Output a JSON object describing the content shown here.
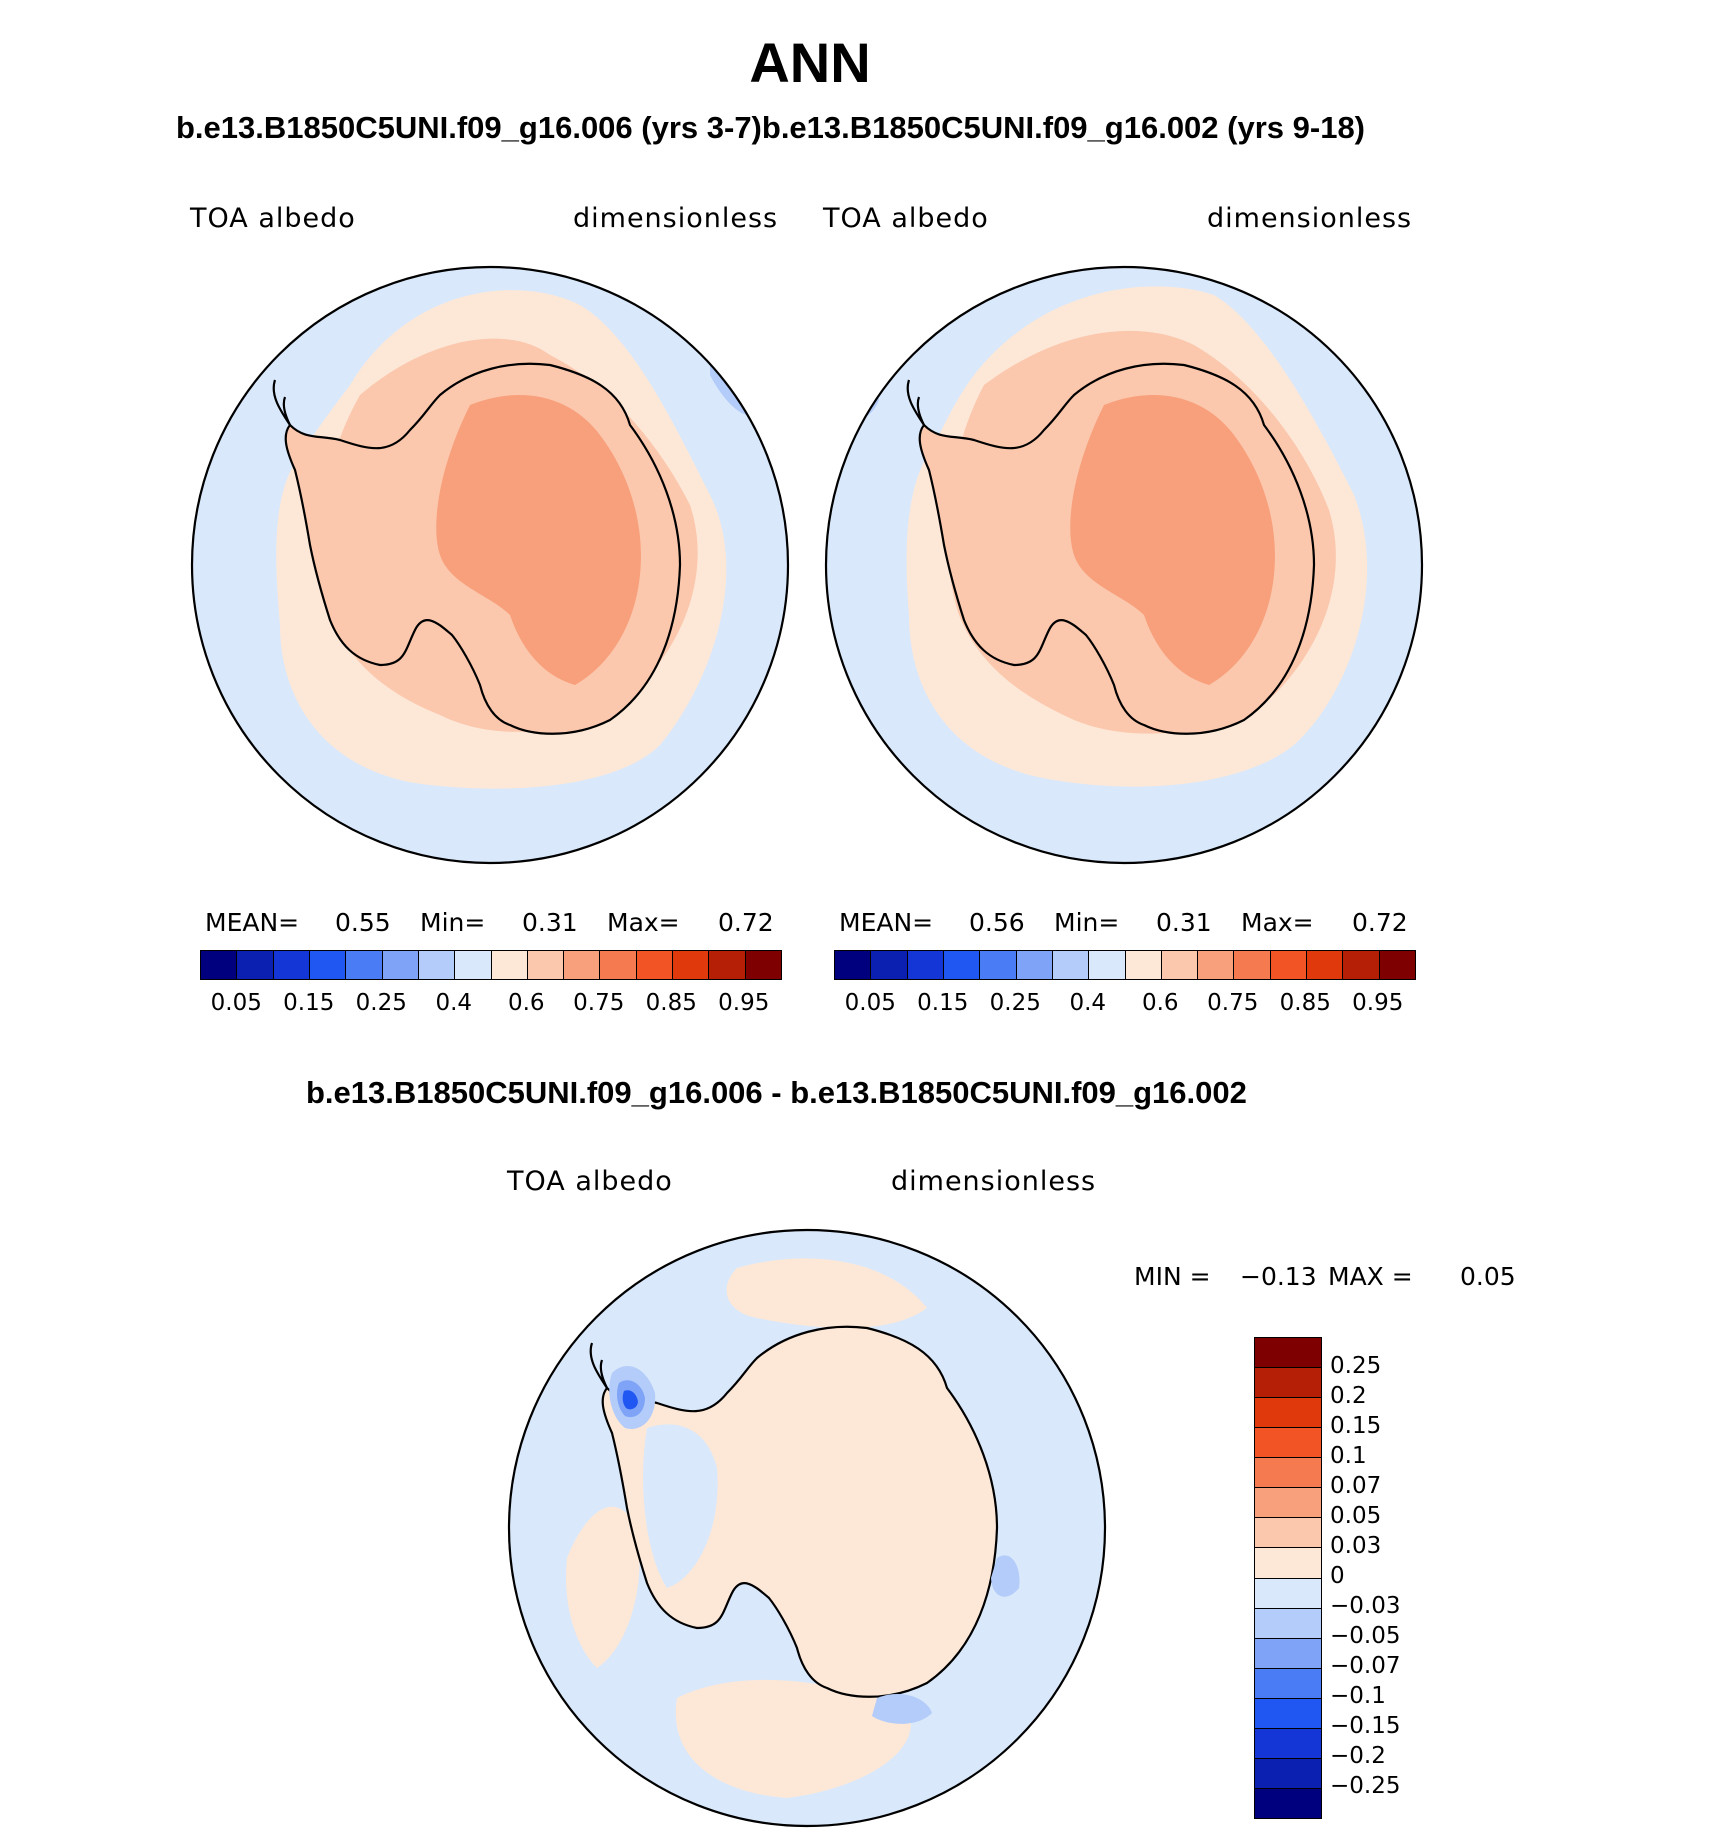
{
  "figure": {
    "title": "ANN",
    "pair_subtitle": "b.e13.B1850C5UNI.f09_g16.006 (yrs 3-7)b.e13.B1850C5UNI.f09_g16.002 (yrs 9-18)",
    "diff_subtitle": "b.e13.B1850C5UNI.f09_g16.006 - b.e13.B1850C5UNI.f09_g16.002"
  },
  "panels": [
    {
      "id": "left",
      "variable": "TOA albedo",
      "units": "dimensionless",
      "stats": {
        "mean_label": "MEAN=",
        "mean": "0.55",
        "min_label": "Min=",
        "min": "0.31",
        "max_label": "Max=",
        "max": "0.72"
      }
    },
    {
      "id": "right",
      "variable": "TOA albedo",
      "units": "dimensionless",
      "stats": {
        "mean_label": "MEAN=",
        "mean": "0.56",
        "min_label": "Min=",
        "min": "0.31",
        "max_label": "Max=",
        "max": "0.72"
      }
    }
  ],
  "diff_panel": {
    "variable": "TOA albedo",
    "units": "dimensionless",
    "stats": {
      "min_label": "MIN =",
      "min": "−0.13",
      "max_label": "MAX =",
      "max": "0.05"
    }
  },
  "colorbar_abs": {
    "colors": [
      "#00007f",
      "#0b1fb0",
      "#1536d6",
      "#2056f2",
      "#4a7cf5",
      "#7fa4f7",
      "#b3ccf9",
      "#d9e8fb",
      "#fde8d8",
      "#fbc8ae",
      "#f8a07c",
      "#f57a50",
      "#f25426",
      "#e03a0c",
      "#b51f05",
      "#7f0000"
    ],
    "tick_labels": [
      "0.05",
      "0.15",
      "0.25",
      "0.4",
      "0.6",
      "0.75",
      "0.85",
      "0.95"
    ]
  },
  "colorbar_diff": {
    "colors": [
      "#7f0000",
      "#b51f05",
      "#e03a0c",
      "#f25426",
      "#f57a50",
      "#f8a07c",
      "#fbc8ae",
      "#fde8d8",
      "#d9e8fb",
      "#b3ccf9",
      "#7fa4f7",
      "#4a7cf5",
      "#2056f2",
      "#1536d6",
      "#0b1fb0",
      "#00007f"
    ],
    "tick_labels": [
      "0.25",
      "0.2",
      "0.15",
      "0.1",
      "0.07",
      "0.05",
      "0.03",
      "0",
      "−0.03",
      "−0.05",
      "−0.07",
      "−0.1",
      "−0.15",
      "−0.2",
      "−0.25"
    ]
  },
  "map_colors": {
    "ocean": "#d9e8fb",
    "low_blue": "#b3ccf9",
    "mid_blue": "#7fa4f7",
    "strong_blue": "#2056f2",
    "pale_orange": "#fde8d8",
    "light_orange": "#fbc8ae",
    "orange": "#f8a07c"
  }
}
